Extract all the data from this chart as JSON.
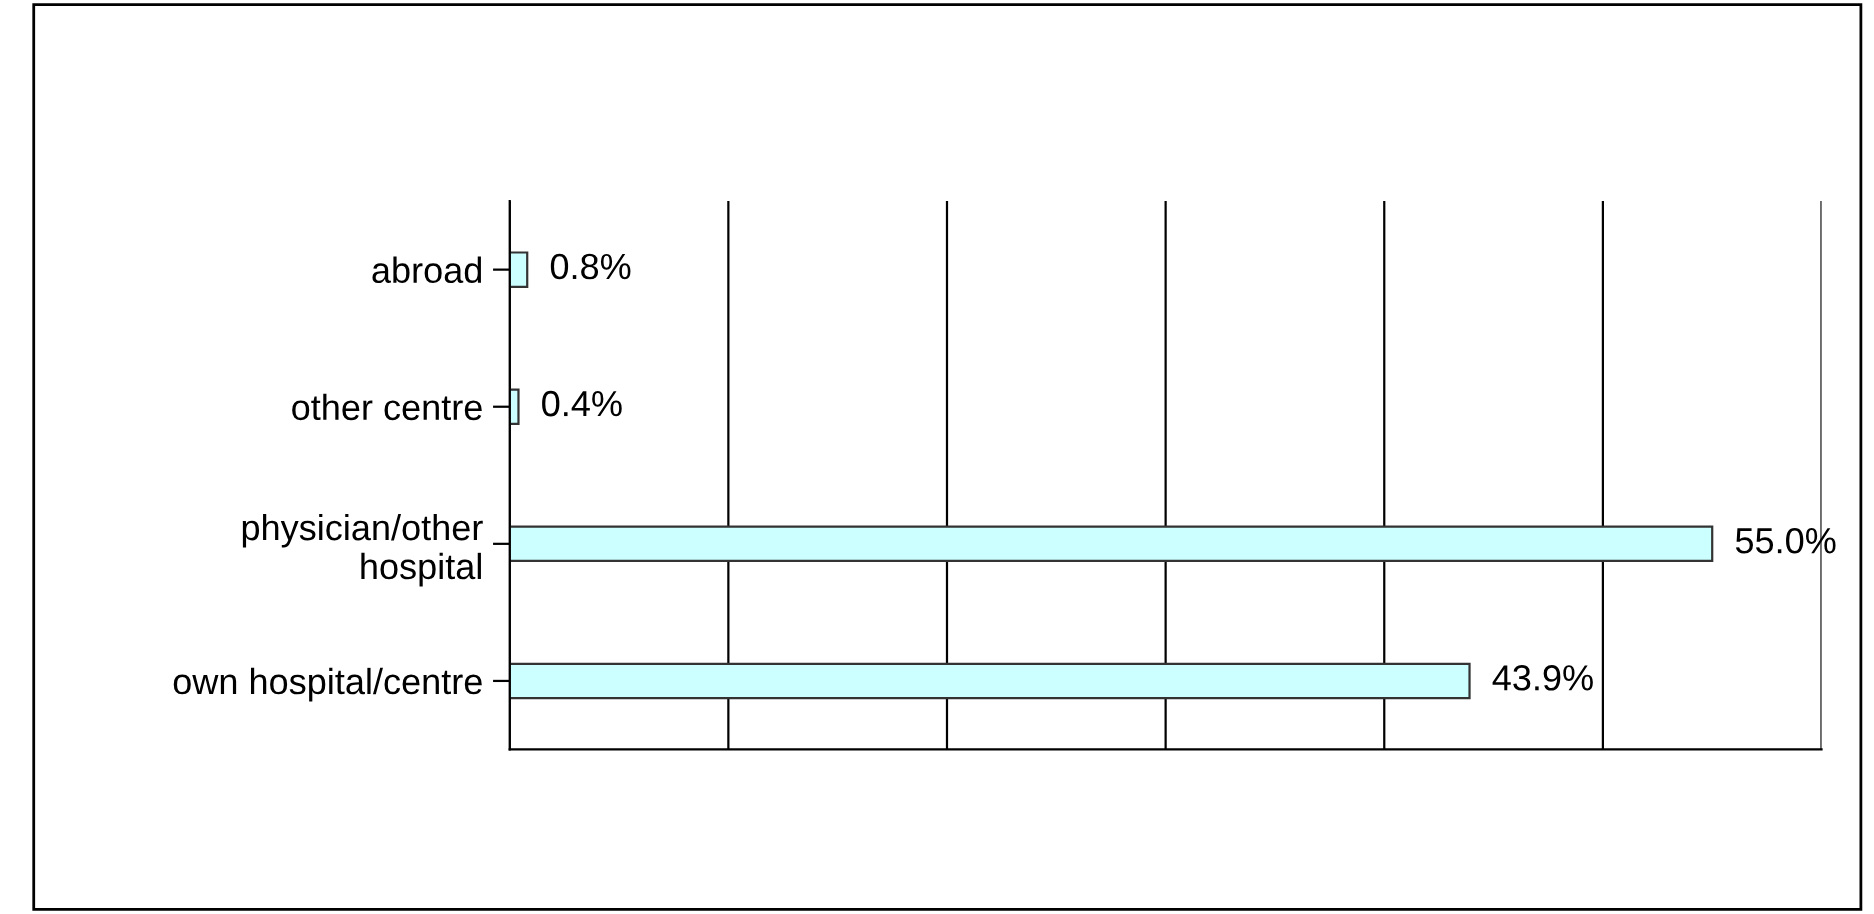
{
  "chart_data": {
    "type": "bar",
    "orientation": "horizontal",
    "categories": [
      "abroad",
      "other centre",
      "physician/other\nhospital",
      "own hospital/centre"
    ],
    "values": [
      0.8,
      0.4,
      55.0,
      43.9
    ],
    "value_labels": [
      "0.8%",
      "0.4%",
      "55.0%",
      "43.9%"
    ],
    "color": "#ccffff",
    "xlim": [
      0,
      60
    ],
    "xticks": [
      {
        "value": 0,
        "label": null
      },
      {
        "value": 10,
        "label": null
      },
      {
        "value": 20,
        "label": null
      },
      {
        "value": 30,
        "label": null
      },
      {
        "value": 40,
        "label": null
      },
      {
        "value": 50,
        "label": null
      },
      {
        "value": 60,
        "label": null
      }
    ],
    "grid": "x",
    "tick_labels": "y",
    "legend": false
  }
}
